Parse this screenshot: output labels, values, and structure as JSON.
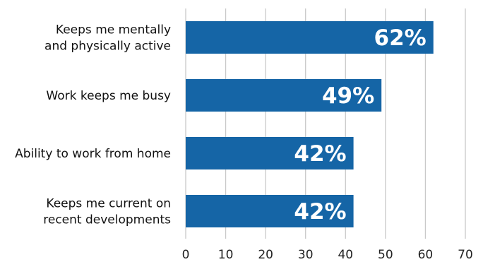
{
  "chart_data": {
    "type": "bar",
    "orientation": "horizontal",
    "categories": [
      [
        "Keeps me mentally",
        "and physically active"
      ],
      [
        "Work keeps me busy"
      ],
      [
        "Ability to work from home"
      ],
      [
        "Keeps me current on",
        "recent developments"
      ]
    ],
    "values": [
      62,
      49,
      42,
      42
    ],
    "data_labels": [
      "62%",
      "49%",
      "42%",
      "42%"
    ],
    "x_ticks": [
      "0",
      "10",
      "20",
      "30",
      "40",
      "50",
      "60",
      "70"
    ],
    "xlim": [
      0,
      70
    ],
    "grid": "vertical",
    "legend": "none",
    "bar_color": "#1565a6"
  }
}
